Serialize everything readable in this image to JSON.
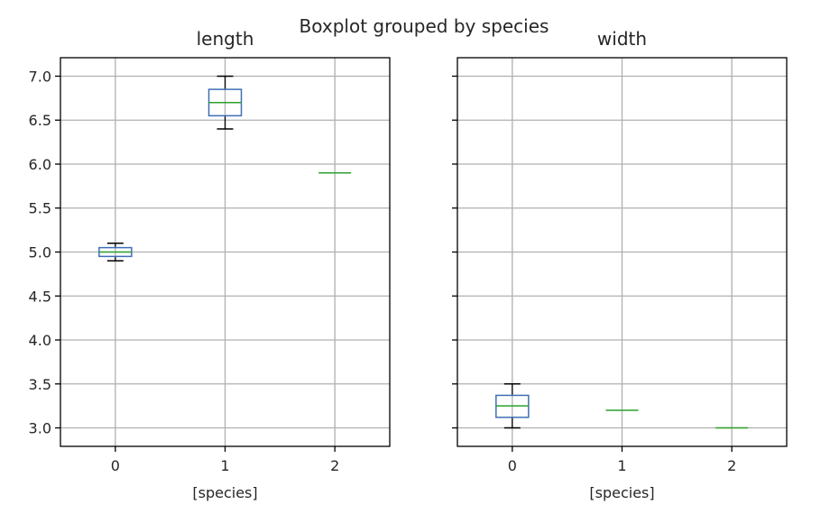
{
  "chart_data": {
    "type": "boxplot",
    "title": "Boxplot grouped by species",
    "shared_y": true,
    "ylim": [
      2.79,
      7.21
    ],
    "yticks": [
      "3.0",
      "3.5",
      "4.0",
      "4.5",
      "5.0",
      "5.5",
      "6.0",
      "6.5",
      "7.0"
    ],
    "grid": true,
    "colors": {
      "box": "#3f6fb5",
      "median": "#2ca02c",
      "whisker": "#000000",
      "grid": "#b0b0b0"
    },
    "panels": [
      {
        "title": "length",
        "xlabel": "[species]",
        "categories": [
          "0",
          "1",
          "2"
        ],
        "boxes": [
          {
            "whislo": 4.9,
            "q1": 4.95,
            "med": 5.0,
            "q3": 5.05,
            "whishi": 5.1
          },
          {
            "whislo": 6.4,
            "q1": 6.55,
            "med": 6.7,
            "q3": 6.85,
            "whishi": 7.0
          },
          {
            "whislo": 5.9,
            "q1": 5.9,
            "med": 5.9,
            "q3": 5.9,
            "whishi": 5.9
          }
        ]
      },
      {
        "title": "width",
        "xlabel": "[species]",
        "categories": [
          "0",
          "1",
          "2"
        ],
        "boxes": [
          {
            "whislo": 3.0,
            "q1": 3.12,
            "med": 3.25,
            "q3": 3.37,
            "whishi": 3.5
          },
          {
            "whislo": 3.2,
            "q1": 3.2,
            "med": 3.2,
            "q3": 3.2,
            "whishi": 3.2
          },
          {
            "whislo": 3.0,
            "q1": 3.0,
            "med": 3.0,
            "q3": 3.0,
            "whishi": 3.0
          }
        ]
      }
    ]
  }
}
